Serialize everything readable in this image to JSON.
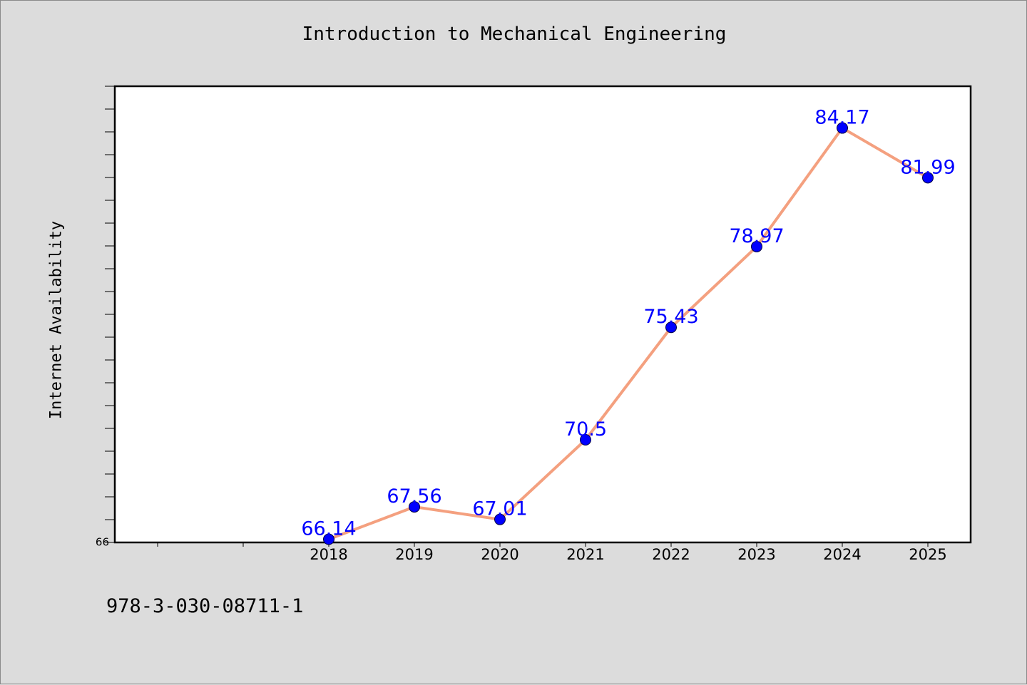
{
  "chart_data": {
    "type": "line",
    "title": "Introduction to Mechanical Engineering",
    "xlabel": "",
    "ylabel": "Internet Availability",
    "categories": [
      "2018",
      "2019",
      "2020",
      "2021",
      "2022",
      "2023",
      "2024",
      "2025"
    ],
    "series": [
      {
        "values": [
          66.14,
          67.56,
          67.01,
          70.5,
          75.43,
          78.97,
          84.17,
          81.99
        ]
      }
    ],
    "data_labels": [
      "66.14",
      "67.56",
      "67.01",
      "70.5",
      "75.43",
      "78.97",
      "84.17",
      "81.99"
    ],
    "ylim": [
      66,
      86
    ],
    "xlim_slots": [
      -2.5,
      7.5
    ],
    "y_tick_labels": [
      "66"
    ],
    "y_minor_tick_step": 1,
    "grid": false,
    "legend": "none",
    "colors": {
      "line": "#f4a07f",
      "marker": "#0000ff",
      "data_label": "#0000ff",
      "plot_background": "#ffffff",
      "figure_background": "#dcdcdc"
    }
  },
  "footer": {
    "code": "978-3-030-08711-1"
  }
}
